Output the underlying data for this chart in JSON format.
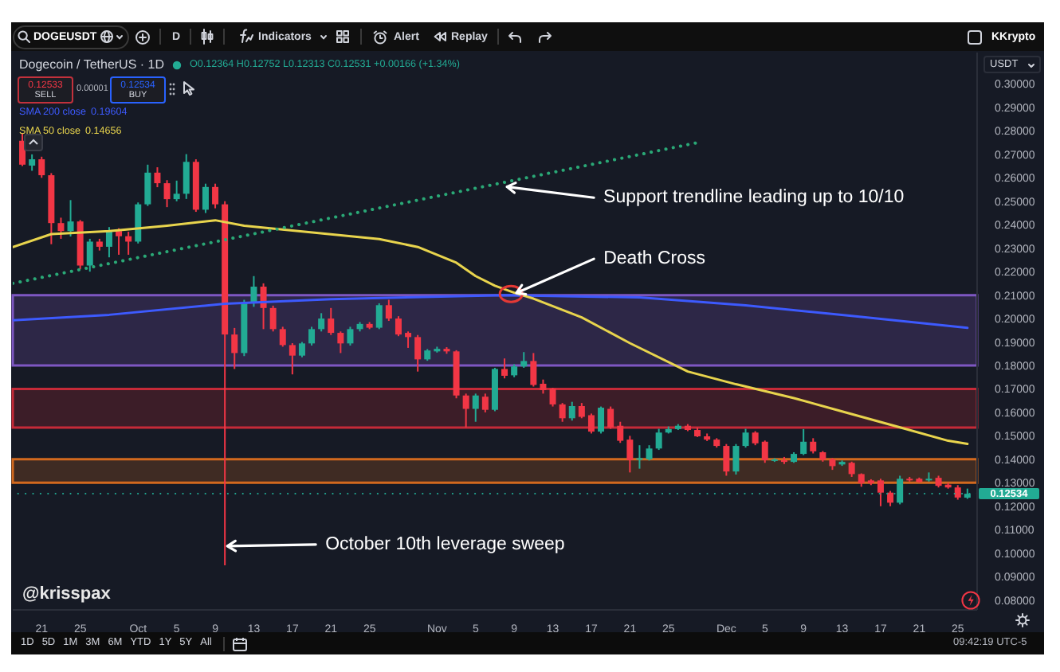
{
  "chart_data": {
    "type": "candlestick",
    "title": "Dogecoin / TetherUS · 1D",
    "subtitle": "O0.12364 H0.12752 L0.12313 C0.12531 +0.00166 (+1.34%)",
    "ylabel": "USDT",
    "x": [
      "--09-19",
      "--09-20",
      "--09-21",
      "--09-22",
      "--09-23",
      "--09-24",
      "--09-25",
      "--09-26",
      "--09-27",
      "--09-28",
      "--09-29",
      "--09-30",
      "--10-01",
      "--10-02",
      "--10-03",
      "--10-04",
      "--10-05",
      "--10-06",
      "--10-07",
      "--10-08",
      "--10-09",
      "--10-10",
      "--10-11",
      "--10-12",
      "--10-13",
      "--10-14",
      "--10-15",
      "--10-16",
      "--10-17",
      "--10-18",
      "--10-19",
      "--10-20",
      "--10-21",
      "--10-22",
      "--10-23",
      "--10-24",
      "--10-25",
      "--10-26",
      "--10-27",
      "--10-28",
      "--10-29",
      "--10-30",
      "--10-31",
      "--11-01",
      "--11-02",
      "--11-03",
      "--11-04",
      "--11-05",
      "--11-06",
      "--11-07",
      "--11-08",
      "--11-09",
      "--11-10",
      "--11-11",
      "--11-12",
      "--11-13",
      "--11-14",
      "--11-15",
      "--11-16",
      "--11-17",
      "--11-18",
      "--11-19",
      "--11-20",
      "--11-21",
      "--11-22",
      "--11-23",
      "--11-24",
      "--11-25",
      "--11-26",
      "--11-27",
      "--11-28",
      "--11-29",
      "--11-30",
      "--12-01",
      "--12-02",
      "--12-03",
      "--12-04",
      "--12-05",
      "--12-06",
      "--12-07",
      "--12-08",
      "--12-09",
      "--12-10",
      "--12-11",
      "--12-12",
      "--12-13",
      "--12-14",
      "--12-15",
      "--12-16",
      "--12-17",
      "--12-18",
      "--12-19",
      "--12-20",
      "--12-21",
      "--12-22",
      "--12-23",
      "--12-24",
      "--12-25",
      "--12-26"
    ],
    "ohlc": [
      [
        0.2758,
        0.279,
        0.265,
        0.2656
      ],
      [
        0.2652,
        0.27,
        0.263,
        0.2679
      ],
      [
        0.2679,
        0.269,
        0.26,
        0.2611
      ],
      [
        0.2611,
        0.262,
        0.2317,
        0.2407
      ],
      [
        0.2407,
        0.243,
        0.234,
        0.2373
      ],
      [
        0.2373,
        0.2505,
        0.235,
        0.2414
      ],
      [
        0.2414,
        0.242,
        0.221,
        0.2226
      ],
      [
        0.2226,
        0.234,
        0.22,
        0.2328
      ],
      [
        0.2328,
        0.234,
        0.229,
        0.2306
      ],
      [
        0.2306,
        0.239,
        0.2261,
        0.2373
      ],
      [
        0.2373,
        0.2385,
        0.2272,
        0.2351
      ],
      [
        0.2351,
        0.237,
        0.2272,
        0.2328
      ],
      [
        0.2328,
        0.2495,
        0.232,
        0.2487
      ],
      [
        0.2487,
        0.2656,
        0.248,
        0.2622
      ],
      [
        0.2622,
        0.2645,
        0.256,
        0.2577
      ],
      [
        0.2577,
        0.259,
        0.2475,
        0.2509
      ],
      [
        0.2509,
        0.2588,
        0.25,
        0.2532
      ],
      [
        0.2532,
        0.2701,
        0.251,
        0.2668
      ],
      [
        0.2668,
        0.2679,
        0.2455,
        0.2464
      ],
      [
        0.2464,
        0.2575,
        0.245,
        0.2561
      ],
      [
        0.2561,
        0.2575,
        0.247,
        0.2487
      ],
      [
        0.2487,
        0.25,
        0.0948,
        0.1932
      ],
      [
        0.1932,
        0.196,
        0.1785,
        0.1853
      ],
      [
        0.1853,
        0.208,
        0.184,
        0.2068
      ],
      [
        0.2068,
        0.2181,
        0.205,
        0.2136
      ],
      [
        0.2136,
        0.215,
        0.1955,
        0.2045
      ],
      [
        0.2045,
        0.2055,
        0.1945,
        0.1955
      ],
      [
        0.1955,
        0.1965,
        0.188,
        0.1887
      ],
      [
        0.1887,
        0.1895,
        0.1762,
        0.1842
      ],
      [
        0.1842,
        0.19,
        0.1835,
        0.1894
      ],
      [
        0.1894,
        0.1965,
        0.1885,
        0.1955
      ],
      [
        0.1955,
        0.2023,
        0.1945,
        0.2
      ],
      [
        0.2,
        0.2045,
        0.193,
        0.1939
      ],
      [
        0.1939,
        0.1945,
        0.1853,
        0.1894
      ],
      [
        0.1894,
        0.1965,
        0.1885,
        0.1955
      ],
      [
        0.1955,
        0.1985,
        0.1945,
        0.1977
      ],
      [
        0.1977,
        0.1985,
        0.1955,
        0.1961
      ],
      [
        0.1961,
        0.2065,
        0.1955,
        0.2057
      ],
      [
        0.2057,
        0.208,
        0.199,
        0.2
      ],
      [
        0.2,
        0.201,
        0.1925,
        0.1932
      ],
      [
        0.1939,
        0.1945,
        0.1875,
        0.1921
      ],
      [
        0.1921,
        0.193,
        0.1774,
        0.1826
      ],
      [
        0.1826,
        0.187,
        0.182,
        0.1864
      ],
      [
        0.186,
        0.188,
        0.1855,
        0.1871
      ],
      [
        0.1871,
        0.1878,
        0.185,
        0.186
      ],
      [
        0.186,
        0.1865,
        0.166,
        0.1672
      ],
      [
        0.1672,
        0.168,
        0.1536,
        0.1615
      ],
      [
        0.1615,
        0.168,
        0.156,
        0.1672
      ],
      [
        0.1667,
        0.168,
        0.16,
        0.1611
      ],
      [
        0.1611,
        0.179,
        0.1605,
        0.1785
      ],
      [
        0.1785,
        0.183,
        0.1745,
        0.1756
      ],
      [
        0.1758,
        0.1805,
        0.175,
        0.1796
      ],
      [
        0.1796,
        0.1857,
        0.179,
        0.1819
      ],
      [
        0.1819,
        0.1853,
        0.171,
        0.1717
      ],
      [
        0.1722,
        0.174,
        0.168,
        0.1695
      ],
      [
        0.1701,
        0.1705,
        0.1625,
        0.1634
      ],
      [
        0.1634,
        0.164,
        0.156,
        0.1575
      ],
      [
        0.1575,
        0.1645,
        0.1565,
        0.1627
      ],
      [
        0.1627,
        0.164,
        0.1575,
        0.1581
      ],
      [
        0.1588,
        0.1595,
        0.151,
        0.1518
      ],
      [
        0.1518,
        0.1625,
        0.151,
        0.162
      ],
      [
        0.1615,
        0.1625,
        0.153,
        0.1536
      ],
      [
        0.1543,
        0.156,
        0.147,
        0.1479
      ],
      [
        0.1484,
        0.15,
        0.1344,
        0.1396
      ],
      [
        0.1398,
        0.146,
        0.136,
        0.1405
      ],
      [
        0.14,
        0.146,
        0.1395,
        0.1446
      ],
      [
        0.1446,
        0.153,
        0.144,
        0.1514
      ],
      [
        0.1514,
        0.154,
        0.151,
        0.1529
      ],
      [
        0.1529,
        0.155,
        0.1525,
        0.1543
      ],
      [
        0.1543,
        0.155,
        0.152,
        0.1525
      ],
      [
        0.1525,
        0.1535,
        0.1495,
        0.1498
      ],
      [
        0.1498,
        0.151,
        0.1478,
        0.1484
      ],
      [
        0.1484,
        0.149,
        0.145,
        0.1457
      ],
      [
        0.1457,
        0.1465,
        0.133,
        0.1348
      ],
      [
        0.1348,
        0.1465,
        0.1335,
        0.1457
      ],
      [
        0.1457,
        0.153,
        0.145,
        0.1514
      ],
      [
        0.1514,
        0.152,
        0.146,
        0.1468
      ],
      [
        0.1475,
        0.148,
        0.1385,
        0.1396
      ],
      [
        0.1394,
        0.1405,
        0.1389,
        0.14
      ],
      [
        0.1396,
        0.141,
        0.138,
        0.1389
      ],
      [
        0.1389,
        0.143,
        0.1385,
        0.1423
      ],
      [
        0.1423,
        0.1529,
        0.1418,
        0.1475
      ],
      [
        0.1475,
        0.149,
        0.1425,
        0.1434
      ],
      [
        0.143,
        0.1435,
        0.139,
        0.1398
      ],
      [
        0.14,
        0.1405,
        0.1355,
        0.1371
      ],
      [
        0.1378,
        0.1395,
        0.1372,
        0.1389
      ],
      [
        0.1385,
        0.139,
        0.1325,
        0.1337
      ],
      [
        0.1337,
        0.134,
        0.1283,
        0.1298
      ],
      [
        0.131,
        0.1315,
        0.129,
        0.1298
      ],
      [
        0.131,
        0.1317,
        0.12,
        0.1258
      ],
      [
        0.1258,
        0.1265,
        0.12,
        0.1215
      ],
      [
        0.1215,
        0.133,
        0.1208,
        0.1317
      ],
      [
        0.1317,
        0.1325,
        0.1305,
        0.131
      ],
      [
        0.1317,
        0.1322,
        0.13,
        0.1303
      ],
      [
        0.131,
        0.1344,
        0.1305,
        0.1317
      ],
      [
        0.1321,
        0.133,
        0.128,
        0.1287
      ],
      [
        0.1292,
        0.13,
        0.1275,
        0.128
      ],
      [
        0.128,
        0.129,
        0.1228,
        0.1237
      ],
      [
        0.12364,
        0.12752,
        0.12313,
        0.12531
      ]
    ],
    "colors": [
      "#f23645",
      "#22ab94",
      "#f23645",
      "#f23645",
      "#f23645",
      "#22ab94",
      "#f23645",
      "#22ab94",
      "#f23645",
      "#22ab94",
      "#f23645",
      "#f23645",
      "#22ab94",
      "#22ab94",
      "#f23645",
      "#f23645",
      "#22ab94",
      "#22ab94",
      "#f23645",
      "#22ab94",
      "#f23645",
      "#f23645",
      "#f23645",
      "#22ab94",
      "#22ab94",
      "#f23645",
      "#f23645",
      "#f23645",
      "#f23645",
      "#22ab94",
      "#22ab94",
      "#22ab94",
      "#f23645",
      "#f23645",
      "#22ab94",
      "#22ab94",
      "#f23645",
      "#22ab94",
      "#f23645",
      "#f23645",
      "#f23645",
      "#f23645",
      "#22ab94",
      "#22ab94",
      "#f23645",
      "#f23645",
      "#f23645",
      "#22ab94",
      "#f23645",
      "#22ab94",
      "#f23645",
      "#22ab94",
      "#22ab94",
      "#f23645",
      "#f23645",
      "#f23645",
      "#f23645",
      "#22ab94",
      "#f23645",
      "#f23645",
      "#22ab94",
      "#f23645",
      "#f23645",
      "#f23645",
      "#22ab94",
      "#22ab94",
      "#22ab94",
      "#22ab94",
      "#22ab94",
      "#f23645",
      "#f23645",
      "#f23645",
      "#f23645",
      "#f23645",
      "#22ab94",
      "#22ab94",
      "#f23645",
      "#f23645",
      "#22ab94",
      "#f23645",
      "#22ab94",
      "#22ab94",
      "#f23645",
      "#f23645",
      "#f23645",
      "#22ab94",
      "#f23645",
      "#f23645",
      "#f23645",
      "#f23645",
      "#f23645",
      "#22ab94",
      "#f23645",
      "#f23645",
      "#22ab94",
      "#f23645",
      "#f23645",
      "#f23645",
      "#22ab94"
    ],
    "series": [
      {
        "name": "SMA 200 close",
        "type": "line",
        "color": "#3d5afe",
        "x": [
          "--09-18",
          "--09-28",
          "--10-10",
          "--10-21",
          "--11-08",
          "--11-22",
          "--12-03",
          "--12-14",
          "--12-26"
        ],
        "values": [
          0.1993,
          0.2016,
          0.2063,
          0.2083,
          0.21,
          0.209,
          0.2056,
          0.2011,
          0.19604
        ]
      },
      {
        "name": "SMA 50 close",
        "type": "line",
        "color": "#e8d44d",
        "x": [
          "--09-18",
          "--09-22",
          "--09-28",
          "--10-04",
          "--10-09",
          "--10-12",
          "--10-17",
          "--10-26",
          "--10-30",
          "--11-03",
          "--11-05",
          "--11-07",
          "--11-09",
          "--11-11",
          "--11-16",
          "--11-21",
          "--11-27",
          "--12-02",
          "--12-08",
          "--12-13",
          "--12-19",
          "--12-24",
          "--12-26"
        ],
        "values": [
          0.2305,
          0.236,
          0.2373,
          0.2396,
          0.2419,
          0.2396,
          0.2375,
          0.2339,
          0.2305,
          0.2238,
          0.2181,
          0.214,
          0.211,
          0.2085,
          0.2005,
          0.1895,
          0.1774,
          0.172,
          0.1661,
          0.1604,
          0.1536,
          0.1479,
          0.14656
        ]
      },
      {
        "type": "line",
        "color": "#2aa876",
        "line_style": "dotted",
        "x": [
          "--09-18",
          "--11-28"
        ],
        "values": [
          0.215,
          0.275
        ]
      }
    ],
    "bands": [
      {
        "axis": "y",
        "from": 0.18,
        "to": 0.21,
        "color": "#7e57c2"
      },
      {
        "axis": "y",
        "from": 0.1535,
        "to": 0.17,
        "color": "#c62a38"
      },
      {
        "axis": "y",
        "from": 0.13,
        "to": 0.14,
        "color": "#d2691e"
      }
    ],
    "ref_lines": [
      {
        "axis": "y",
        "value": 0.12534,
        "label": "0.12534",
        "color": "#22ab94",
        "line_style": "dotted"
      }
    ],
    "xlim": [
      "--09-18",
      "--12-27"
    ],
    "xticks": [
      {
        "value": "--09-21",
        "label": "21"
      },
      {
        "value": "--09-25",
        "label": "25"
      },
      {
        "value": "--10-01",
        "label": "Oct"
      },
      {
        "value": "--10-05",
        "label": "5"
      },
      {
        "value": "--10-09",
        "label": "9"
      },
      {
        "value": "--10-13",
        "label": "13"
      },
      {
        "value": "--10-17",
        "label": "17"
      },
      {
        "value": "--10-21",
        "label": "21"
      },
      {
        "value": "--10-25",
        "label": "25"
      },
      {
        "value": "--11-01",
        "label": "Nov"
      },
      {
        "value": "--11-05",
        "label": "5"
      },
      {
        "value": "--11-09",
        "label": "9"
      },
      {
        "value": "--11-13",
        "label": "13"
      },
      {
        "value": "--11-17",
        "label": "17"
      },
      {
        "value": "--11-21",
        "label": "21"
      },
      {
        "value": "--11-25",
        "label": "25"
      },
      {
        "value": "--12-01",
        "label": "Dec"
      },
      {
        "value": "--12-05",
        "label": "5"
      },
      {
        "value": "--12-09",
        "label": "9"
      },
      {
        "value": "--12-13",
        "label": "13"
      },
      {
        "value": "--12-17",
        "label": "17"
      },
      {
        "value": "--12-21",
        "label": "21"
      },
      {
        "value": "--12-25",
        "label": "25"
      }
    ],
    "ylim": [
      0.0758,
      0.3134
    ],
    "yticks": [
      {
        "value": 0.08,
        "label": "0.08000"
      },
      {
        "value": 0.09,
        "label": "0.09000"
      },
      {
        "value": 0.1,
        "label": "0.10000"
      },
      {
        "value": 0.11,
        "label": "0.11000"
      },
      {
        "value": 0.12,
        "label": "0.12000"
      },
      {
        "value": 0.13,
        "label": "0.13000"
      },
      {
        "value": 0.14,
        "label": "0.14000"
      },
      {
        "value": 0.15,
        "label": "0.15000"
      },
      {
        "value": 0.16,
        "label": "0.16000"
      },
      {
        "value": 0.17,
        "label": "0.17000"
      },
      {
        "value": 0.18,
        "label": "0.18000"
      },
      {
        "value": 0.19,
        "label": "0.19000"
      },
      {
        "value": 0.2,
        "label": "0.20000"
      },
      {
        "value": 0.21,
        "label": "0.21000"
      },
      {
        "value": 0.22,
        "label": "0.22000"
      },
      {
        "value": 0.23,
        "label": "0.23000"
      },
      {
        "value": 0.24,
        "label": "0.24000"
      },
      {
        "value": 0.25,
        "label": "0.25000"
      },
      {
        "value": 0.26,
        "label": "0.26000"
      },
      {
        "value": 0.27,
        "label": "0.27000"
      },
      {
        "value": 0.28,
        "label": "0.28000"
      },
      {
        "value": 0.29,
        "label": "0.29000"
      },
      {
        "value": 0.3,
        "label": "0.30000"
      }
    ],
    "legend": "top left",
    "annotations": [
      {
        "text": "Support trendline leading up to 10/10",
        "x": "--11-08",
        "y": 0.2563
      },
      {
        "text": "Death Cross",
        "x": "--11-09",
        "y": 0.2105
      },
      {
        "text": "October 10th leverage sweep",
        "x": "--10-10",
        "y": 0.103
      },
      "DOGEUSDT",
      "D",
      "Indicators",
      "Alert",
      "Replay",
      "KKrypto",
      "0.12533",
      "SELL",
      "0.00001",
      "0.12534",
      "BUY",
      "@krisspax",
      "1D",
      "5D",
      "1M",
      "3M",
      "6M",
      "YTD",
      "1Y",
      "5Y",
      "All",
      "09:42:19 UTC-5",
      "0.19604",
      "0.14656"
    ]
  }
}
